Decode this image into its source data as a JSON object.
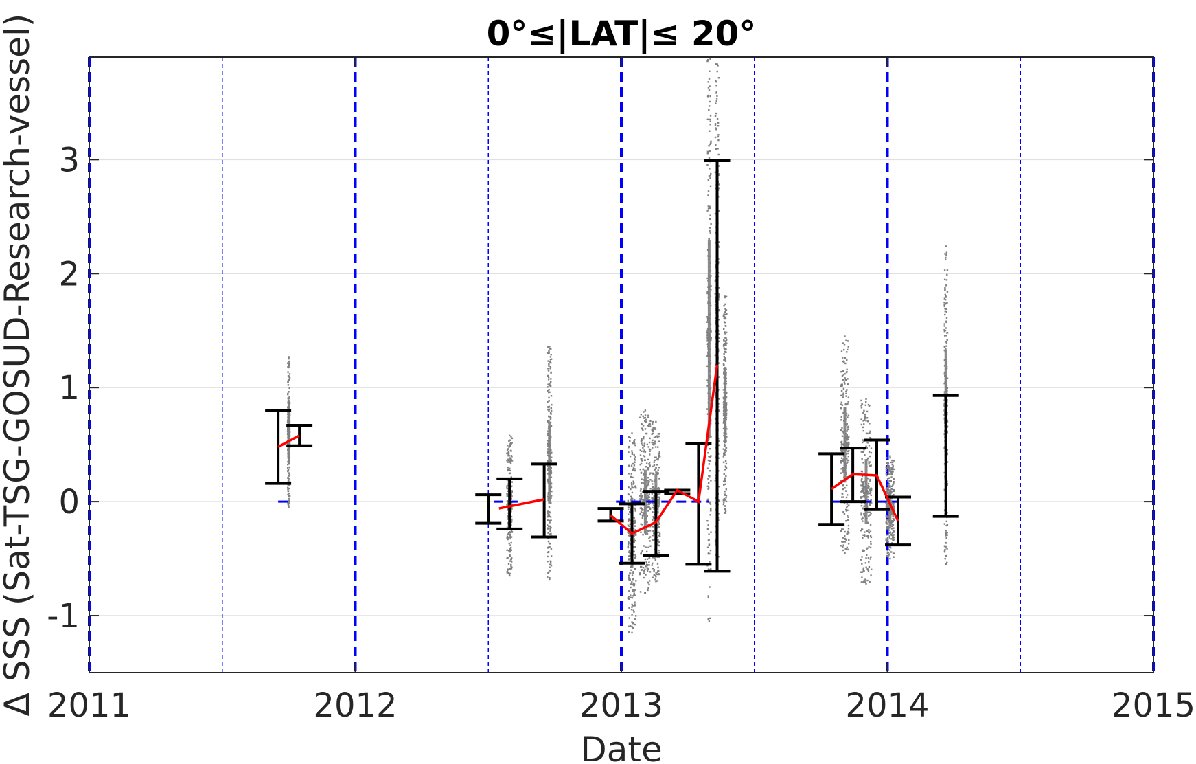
{
  "chart_data": {
    "type": "scatter",
    "title": "0°≤|LAT|≤ 20°",
    "xlabel": "Date",
    "ylabel": "Δ SSS (Sat-TSG-GOSUD-Research-vessel)",
    "xlim": [
      2011,
      2015
    ],
    "ylim": [
      -1.5,
      3.9
    ],
    "x_ticks": [
      2011,
      2012,
      2013,
      2014,
      2015
    ],
    "x_tick_labels": [
      "2011",
      "2012",
      "2013",
      "2014",
      "2015"
    ],
    "y_ticks": [
      -1,
      0,
      1,
      2,
      3
    ],
    "y_tick_labels": [
      "-1",
      "0",
      "1",
      "2",
      "3"
    ],
    "grid": "horizontal",
    "year_lines": [
      2011,
      2012,
      2013,
      2014,
      2015
    ],
    "half_year_lines": [
      2011.5,
      2012.5,
      2013.5,
      2014.5
    ],
    "series": [
      {
        "name": "",
        "type": "errorbar",
        "color": "#000000",
        "points": [
          {
            "x": 2011.71,
            "low": 0.16,
            "high": 0.8
          },
          {
            "x": 2011.79,
            "low": 0.49,
            "high": 0.67
          },
          {
            "x": 2012.5,
            "low": -0.19,
            "high": 0.06
          },
          {
            "x": 2012.58,
            "low": -0.24,
            "high": 0.2
          },
          {
            "x": 2012.71,
            "low": -0.31,
            "high": 0.33
          },
          {
            "x": 2012.96,
            "low": -0.17,
            "high": -0.06
          },
          {
            "x": 2013.04,
            "low": -0.54,
            "high": -0.02
          },
          {
            "x": 2013.13,
            "low": -0.47,
            "high": 0.09
          },
          {
            "x": 2013.21,
            "low": 0.07,
            "high": 0.1
          },
          {
            "x": 2013.29,
            "low": -0.55,
            "high": 0.51
          },
          {
            "x": 2013.36,
            "low": -0.61,
            "high": 2.99
          },
          {
            "x": 2013.79,
            "low": -0.2,
            "high": 0.42
          },
          {
            "x": 2013.87,
            "low": 0.0,
            "high": 0.47
          },
          {
            "x": 2013.96,
            "low": -0.07,
            "high": 0.54
          },
          {
            "x": 2014.04,
            "low": -0.38,
            "high": 0.04
          },
          {
            "x": 2014.22,
            "low": -0.13,
            "high": 0.93
          }
        ]
      },
      {
        "name": "",
        "type": "line",
        "color": "#ff0000",
        "segments": [
          [
            [
              2011.71,
              0.48
            ],
            [
              2011.79,
              0.58
            ]
          ],
          [
            [
              2012.54,
              -0.06
            ],
            [
              2012.71,
              0.02
            ]
          ],
          [
            [
              2012.96,
              -0.12
            ],
            [
              2013.04,
              -0.28
            ],
            [
              2013.13,
              -0.18
            ],
            [
              2013.21,
              0.1
            ],
            [
              2013.29,
              0.0
            ],
            [
              2013.36,
              1.2
            ]
          ],
          [
            [
              2013.79,
              0.11
            ],
            [
              2013.87,
              0.24
            ],
            [
              2013.96,
              0.23
            ],
            [
              2014.04,
              -0.17
            ]
          ]
        ]
      },
      {
        "name": "",
        "type": "scatter",
        "color": "#808080",
        "clusters": [
          {
            "x": 2011.75,
            "low": -0.05,
            "high": 1.27,
            "width": 0.008
          },
          {
            "x": 2012.58,
            "low": -0.65,
            "high": 0.58,
            "width": 0.02
          },
          {
            "x": 2012.73,
            "low": -0.68,
            "high": 1.36,
            "width": 0.016
          },
          {
            "x": 2013.04,
            "low": -1.15,
            "high": 0.6,
            "width": 0.03
          },
          {
            "x": 2013.09,
            "low": -0.8,
            "high": 0.8,
            "width": 0.04
          },
          {
            "x": 2013.13,
            "low": -0.7,
            "high": 0.7,
            "width": 0.03
          },
          {
            "x": 2013.33,
            "low": -1.05,
            "high": 3.9,
            "width": 0.014
          },
          {
            "x": 2013.36,
            "low": -0.55,
            "high": 3.9,
            "width": 0.014
          },
          {
            "x": 2013.39,
            "low": -0.1,
            "high": 1.8,
            "width": 0.012
          },
          {
            "x": 2013.84,
            "low": -0.45,
            "high": 1.45,
            "width": 0.03
          },
          {
            "x": 2013.92,
            "low": -0.72,
            "high": 0.9,
            "width": 0.04
          },
          {
            "x": 2014.01,
            "low": -0.5,
            "high": 0.4,
            "width": 0.03
          },
          {
            "x": 2014.22,
            "low": -0.55,
            "high": 2.24,
            "width": 0.012
          }
        ]
      },
      {
        "name": "",
        "type": "reference",
        "color": "#0000ff",
        "segments": [
          [
            [
              2011.71,
              0
            ],
            [
              2011.76,
              0
            ]
          ],
          [
            [
              2012.52,
              0
            ],
            [
              2012.61,
              0
            ]
          ],
          [
            [
              2012.98,
              0
            ],
            [
              2013.33,
              0
            ]
          ],
          [
            [
              2013.79,
              0
            ],
            [
              2014.04,
              0
            ]
          ]
        ]
      }
    ]
  }
}
